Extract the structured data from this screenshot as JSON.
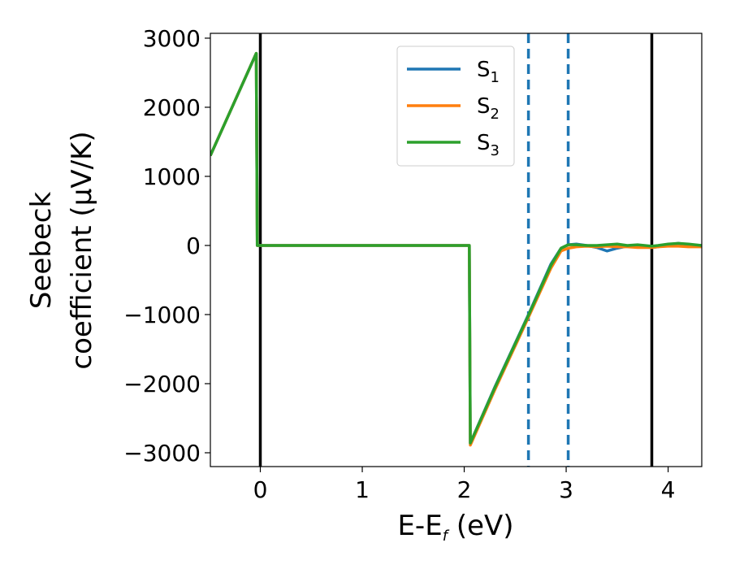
{
  "chart_data": {
    "type": "line",
    "xlabel_main": "E-E",
    "xlabel_sub": "f",
    "xlabel_unit": " (eV)",
    "ylabel_line1": "Seebeck",
    "ylabel_line2": "coefficient  (μV/K)",
    "xlim": [
      -0.49,
      4.33
    ],
    "ylim": [
      -3200,
      3070
    ],
    "xticks": [
      0,
      1,
      2,
      3,
      4
    ],
    "yticks": [
      3000,
      2000,
      1000,
      0,
      -1000,
      -2000,
      -3000
    ],
    "ytick_labels": [
      "3000",
      "2000",
      "1000",
      "0",
      "−1000",
      "−2000",
      "−3000"
    ],
    "grid": false,
    "legend_position": "upper-center",
    "vlines_solid": [
      0.0,
      3.84
    ],
    "vlines_dashed": [
      2.63,
      3.02
    ],
    "colors": {
      "s1": "#1f77b4",
      "s2": "#ff7f0e",
      "s3": "#2ca02c",
      "solid_vline": "#000000",
      "dashed_vline": "#1f77b4"
    },
    "series": [
      {
        "name": "S",
        "sub": "1",
        "color": "#1f77b4",
        "x": [
          -0.49,
          -0.04,
          -0.03,
          2.05,
          2.06,
          2.3,
          2.63,
          2.85,
          2.95,
          3.02,
          3.1,
          3.2,
          3.3,
          3.4,
          3.5,
          3.6,
          3.7,
          3.84,
          3.9,
          4.0,
          4.1,
          4.2,
          4.33
        ],
        "y": [
          1300,
          2780,
          0,
          0,
          -2860,
          -2050,
          -1000,
          -270,
          -40,
          10,
          20,
          0,
          -30,
          -80,
          -40,
          -10,
          -20,
          -30,
          -20,
          10,
          30,
          10,
          0
        ]
      },
      {
        "name": "S",
        "sub": "2",
        "color": "#ff7f0e",
        "x": [
          -0.49,
          -0.04,
          -0.03,
          2.05,
          2.06,
          2.3,
          2.63,
          2.85,
          2.95,
          3.02,
          3.1,
          3.2,
          3.3,
          3.4,
          3.5,
          3.6,
          3.7,
          3.84,
          3.9,
          4.0,
          4.1,
          4.2,
          4.33
        ],
        "y": [
          1300,
          2780,
          0,
          0,
          -2890,
          -2090,
          -1040,
          -330,
          -80,
          -40,
          -20,
          -10,
          -20,
          -10,
          -20,
          -20,
          -30,
          -30,
          -20,
          -10,
          -10,
          -20,
          -20
        ]
      },
      {
        "name": "S",
        "sub": "3",
        "color": "#2ca02c",
        "x": [
          -0.49,
          -0.04,
          -0.03,
          2.05,
          2.06,
          2.3,
          2.63,
          2.85,
          2.95,
          3.02,
          3.1,
          3.2,
          3.3,
          3.4,
          3.5,
          3.6,
          3.7,
          3.84,
          3.9,
          4.0,
          4.1,
          4.2,
          4.33
        ],
        "y": [
          1300,
          2780,
          0,
          0,
          -2860,
          -2060,
          -1010,
          -290,
          -40,
          10,
          10,
          0,
          0,
          10,
          20,
          0,
          10,
          -10,
          0,
          20,
          30,
          20,
          0
        ]
      }
    ]
  }
}
